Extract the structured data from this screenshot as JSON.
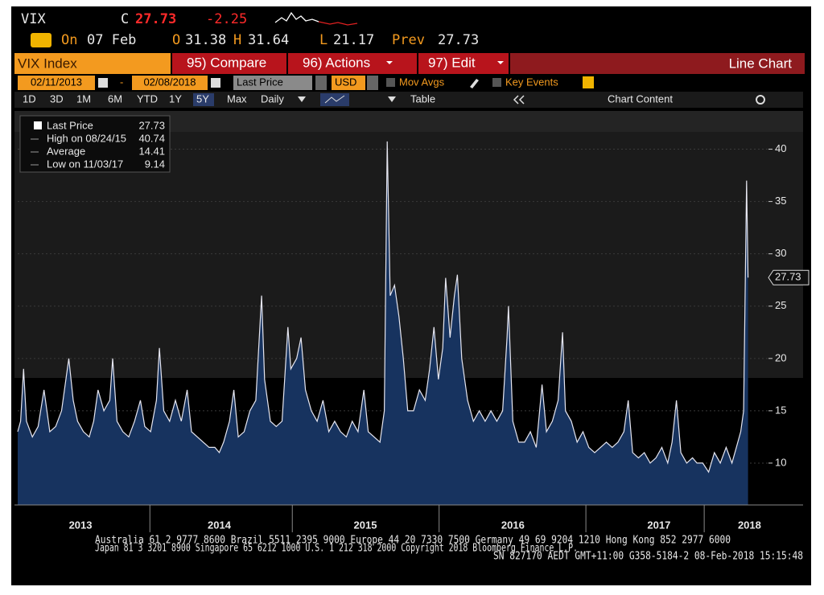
{
  "header": {
    "ticker": "VIX",
    "close_label": "C",
    "close": "27.73",
    "change": "-2.25",
    "on_label": "On",
    "date": "07 Feb",
    "open_label": "O",
    "open": "31.38",
    "high_label": "H",
    "high": "31.64",
    "low_label": "L",
    "low": "21.17",
    "prev_label": "Prev",
    "prev": "27.73"
  },
  "toolbar": {
    "security": "VIX Index",
    "buttons": [
      "95) Compare",
      "96) Actions",
      "97) Edit"
    ],
    "view": "Line Chart",
    "start_date": "02/11/2013",
    "date_separator": "-",
    "end_date": "02/08/2018",
    "field": "Last Price",
    "currency": "USD",
    "mov_avgs": "Mov Avgs",
    "key_events": "Key Events",
    "periods": [
      "1D",
      "3D",
      "1M",
      "6M",
      "YTD",
      "1Y",
      "5Y",
      "Max"
    ],
    "active_period_index": 6,
    "frequency": "Daily",
    "table": "Table",
    "chart_content": "Chart Content"
  },
  "chart_data": {
    "type": "line",
    "x": [
      2013.11,
      2013.13,
      2013.15,
      2013.17,
      2013.21,
      2013.25,
      2013.29,
      2013.33,
      2013.37,
      2013.41,
      2013.44,
      2013.46,
      2013.49,
      2013.52,
      2013.56,
      2013.6,
      2013.63,
      2013.66,
      2013.7,
      2013.74,
      2013.76,
      2013.79,
      2013.83,
      2013.87,
      2013.91,
      2013.95,
      2013.98,
      2014.02,
      2014.06,
      2014.08,
      2014.11,
      2014.15,
      2014.19,
      2014.23,
      2014.27,
      2014.3,
      2014.34,
      2014.38,
      2014.42,
      2014.46,
      2014.49,
      2014.52,
      2014.56,
      2014.59,
      2014.62,
      2014.66,
      2014.7,
      2014.74,
      2014.78,
      2014.8,
      2014.84,
      2014.88,
      2014.92,
      2014.96,
      2014.98,
      2015.02,
      2015.05,
      2015.08,
      2015.12,
      2015.16,
      2015.2,
      2015.24,
      2015.28,
      2015.32,
      2015.36,
      2015.4,
      2015.44,
      2015.48,
      2015.51,
      2015.55,
      2015.59,
      2015.62,
      2015.64,
      2015.66,
      2015.69,
      2015.72,
      2015.75,
      2015.78,
      2015.82,
      2015.86,
      2015.9,
      2015.93,
      2015.96,
      2015.99,
      2016.02,
      2016.04,
      2016.07,
      2016.1,
      2016.12,
      2016.15,
      2016.19,
      2016.23,
      2016.27,
      2016.31,
      2016.35,
      2016.39,
      2016.43,
      2016.46,
      2016.47,
      2016.5,
      2016.54,
      2016.58,
      2016.62,
      2016.66,
      2016.7,
      2016.73,
      2016.77,
      2016.81,
      2016.84,
      2016.86,
      2016.9,
      2016.94,
      2016.98,
      2017.02,
      2017.06,
      2017.1,
      2017.14,
      2017.18,
      2017.22,
      2017.26,
      2017.29,
      2017.32,
      2017.36,
      2017.4,
      2017.44,
      2017.48,
      2017.52,
      2017.56,
      2017.59,
      2017.62,
      2017.65,
      2017.69,
      2017.73,
      2017.76,
      2017.8,
      2017.84,
      2017.88,
      2017.92,
      2017.96,
      2018.0,
      2018.03,
      2018.06,
      2018.08,
      2018.1,
      2018.11
    ],
    "series": [
      {
        "name": "Last Price",
        "color": "#e6e6f0",
        "fill": "#17335f",
        "values": [
          13,
          14,
          19,
          14,
          12.5,
          13.5,
          17,
          13,
          13.5,
          15,
          18,
          20,
          16,
          14,
          13,
          12.5,
          14,
          17,
          15,
          16,
          20,
          14,
          13,
          12.5,
          14,
          16,
          13.5,
          13,
          16,
          21,
          15,
          14,
          16,
          14,
          17,
          13,
          12.5,
          12,
          11.5,
          11.5,
          11,
          12,
          14,
          17,
          12.5,
          13,
          15,
          16,
          26,
          18,
          14,
          13.5,
          14,
          23,
          19,
          20,
          22,
          17,
          15,
          14,
          16,
          13,
          14,
          13,
          12.5,
          14,
          13,
          17,
          13,
          12.5,
          12,
          15,
          40.74,
          26,
          27,
          24,
          20,
          15,
          15,
          17,
          16,
          19,
          23,
          18,
          21,
          27.7,
          22,
          26,
          28,
          20,
          16,
          14,
          15,
          14,
          15,
          14,
          15,
          22,
          25,
          14,
          12,
          12,
          13,
          11.5,
          17.5,
          13,
          14,
          16,
          22.5,
          15,
          14,
          12,
          13,
          11.5,
          11,
          11.5,
          12,
          11.5,
          12,
          13,
          16,
          11,
          10.5,
          11,
          10,
          10.5,
          11.5,
          10,
          12,
          16,
          11,
          10,
          10.5,
          10,
          10,
          9.14,
          11,
          10,
          11.5,
          10,
          11.5,
          13,
          15,
          37,
          27.73
        ]
      }
    ],
    "stats": [
      {
        "label": "High on 08/24/15",
        "value": 40.74
      },
      {
        "label": "Average",
        "value": 14.41
      },
      {
        "label": "Low on 11/03/17",
        "value": 9.14
      }
    ],
    "xlim": [
      2013.11,
      2018.25
    ],
    "xticks": [
      {
        "value": 2013.54,
        "label": "2013"
      },
      {
        "value": 2014.49,
        "label": "2014"
      },
      {
        "value": 2015.49,
        "label": "2015"
      },
      {
        "value": 2016.5,
        "label": "2016"
      },
      {
        "value": 2017.5,
        "label": "2017"
      },
      {
        "value": 2018.12,
        "label": "2018"
      }
    ],
    "ylim": [
      6,
      43.5
    ],
    "yticks": [
      10,
      15,
      20,
      25,
      30,
      35,
      40
    ],
    "grid": true
  },
  "footer": [
    "Australia 61 2 9777 8600 Brazil 5511 2395 9000 Europe 44 20 7330 7500 Germany 49 69 9204 1210 Hong Kong 852 2977 6000",
    "Japan 81 3 3201 8900 Singapore 65 6212 1000 U.S. 1 212 318 2000 Copyright 2018 Bloomberg Finance L.P.",
    "SN 827170 AEDT GMT+11:00 G358-5184-2 08-Feb-2018 15:15:48"
  ]
}
